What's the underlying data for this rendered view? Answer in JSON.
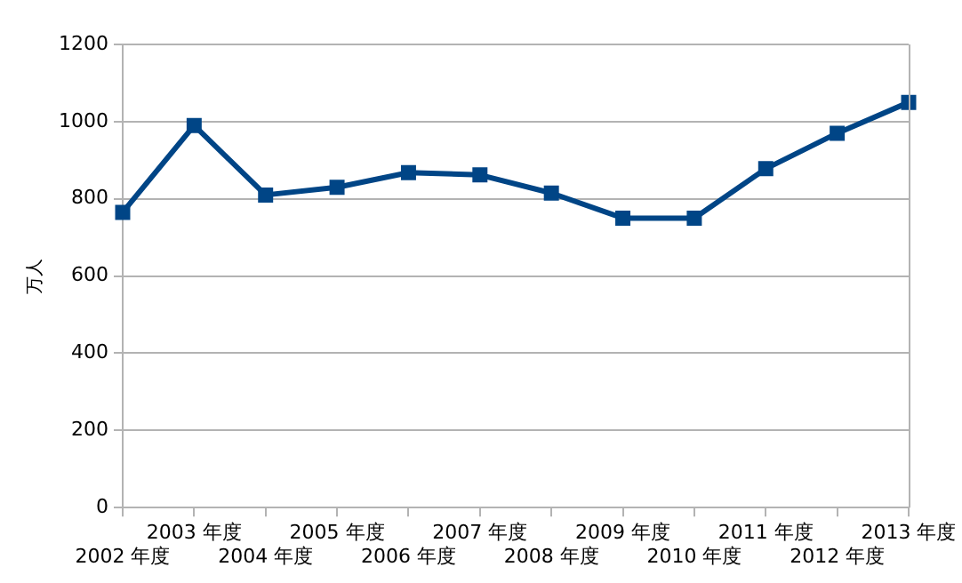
{
  "chart_data": {
    "type": "line",
    "ylabel": "万人",
    "categories": [
      "2002 年度",
      "2003 年度",
      "2004 年度",
      "2005 年度",
      "2006 年度",
      "2007 年度",
      "2008 年度",
      "2009 年度",
      "2010 年度",
      "2011 年度",
      "2012 年度",
      "2013 年度"
    ],
    "series": [
      {
        "color": "#004586",
        "values": [
          765,
          990,
          810,
          830,
          868,
          862,
          815,
          750,
          750,
          878,
          970,
          1050
        ]
      }
    ],
    "ylim": [
      0,
      1200
    ],
    "yticks": [
      0,
      200,
      400,
      600,
      800,
      1000,
      1200
    ],
    "grid": "y",
    "legend": false,
    "marker": "square",
    "line_style": "solid"
  }
}
